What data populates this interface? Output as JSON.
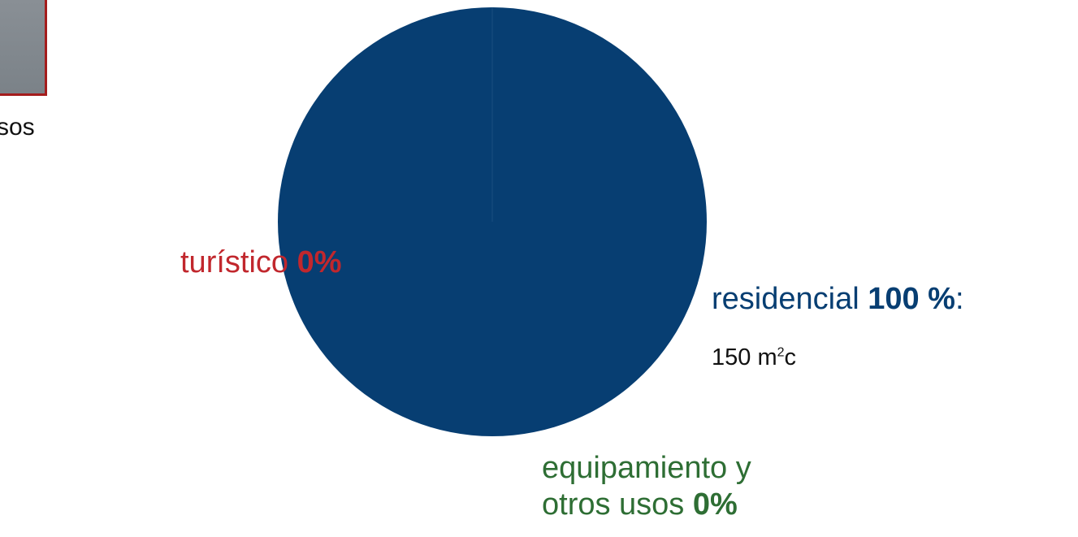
{
  "colors": {
    "residencial": "#073e72",
    "turistico": "#c1272d",
    "equipamiento": "#2e6e34",
    "legend_border": "#a41c1c",
    "legend_fill": "#80878d"
  },
  "legend": {
    "partial_label": "sos"
  },
  "labels": {
    "turistico": {
      "name": "turístico",
      "pct": "0%"
    },
    "residencial": {
      "name": "residencial",
      "pct": "100 %",
      "suffix": ":",
      "area_value": "150 m",
      "area_sup": "2",
      "area_unit": "c"
    },
    "equipamiento": {
      "line1": "equipamiento y",
      "line2_name": "otros usos",
      "pct": "0%"
    }
  },
  "chart_data": {
    "type": "pie",
    "categories": [
      "residencial",
      "turístico",
      "equipamiento y otros usos"
    ],
    "values": [
      100,
      0,
      0
    ],
    "units": "%",
    "annotations": [
      "150 m²c"
    ]
  }
}
